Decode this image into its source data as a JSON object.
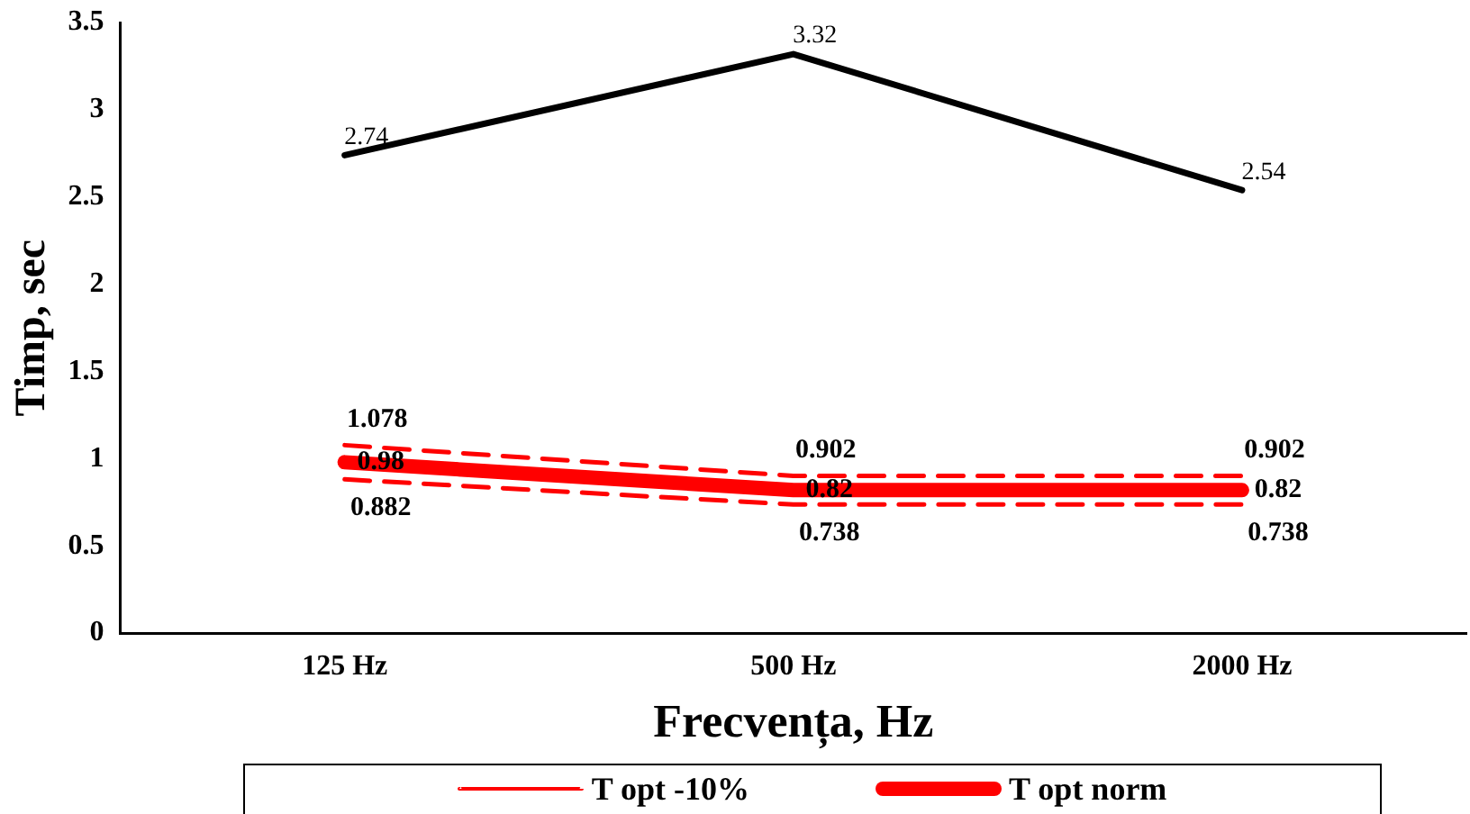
{
  "chart_data": {
    "type": "line",
    "xlabel": "Frecvența, Hz",
    "ylabel": "Timp, sec",
    "categories": [
      "125 Hz",
      "500 Hz",
      "2000 Hz"
    ],
    "series": [
      {
        "color": "#000000",
        "values": [
          2.74,
          3.32,
          2.54
        ],
        "line_style": "solid"
      },
      {
        "color": "#ff0000",
        "values": [
          1.078,
          0.902,
          0.902
        ],
        "line_style": "dashed"
      },
      {
        "name": "T opt norm",
        "color": "#ff0000",
        "values": [
          0.98,
          0.82,
          0.82
        ],
        "line_style": "solid"
      },
      {
        "name": "T opt -10%",
        "color": "#ff0000",
        "values": [
          0.882,
          0.738,
          0.738
        ],
        "line_style": "dashed"
      }
    ],
    "ylim": [
      0,
      3.5
    ],
    "yticks": [
      0,
      0.5,
      1,
      1.5,
      2,
      2.5,
      3,
      3.5
    ],
    "grid": false,
    "legend": "bottom",
    "marker": "none",
    "data_labels": true
  }
}
